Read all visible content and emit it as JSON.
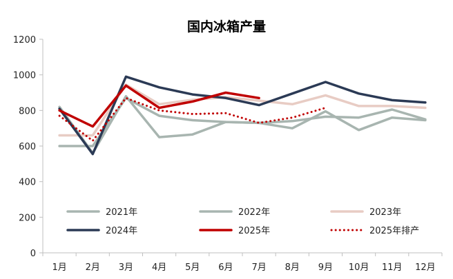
{
  "chart_data": {
    "type": "line",
    "title": "国内冰箱产量",
    "xlabel": "",
    "ylabel": "",
    "categories": [
      "1月",
      "2月",
      "3月",
      "4月",
      "5月",
      "6月",
      "7月",
      "8月",
      "9月",
      "10月",
      "11月",
      "12月"
    ],
    "ylim": [
      0,
      1200
    ],
    "yticks": [
      0,
      200,
      400,
      600,
      800,
      1000,
      1200
    ],
    "grid": false,
    "legend_position": "bottom-inside",
    "series": [
      {
        "name": "2021年",
        "color": "#a8b5b0",
        "dash": "solid",
        "values": [
          820,
          560,
          880,
          650,
          665,
          735,
          730,
          700,
          795,
          690,
          760,
          745
        ]
      },
      {
        "name": "2022年",
        "color": "#a8b5b0",
        "dash": "solid",
        "values": [
          600,
          600,
          870,
          770,
          745,
          735,
          730,
          740,
          765,
          760,
          805,
          750
        ]
      },
      {
        "name": "2023年",
        "color": "#e8ccc4",
        "dash": "solid",
        "values": [
          660,
          660,
          945,
          835,
          860,
          875,
          855,
          835,
          885,
          825,
          825,
          815
        ]
      },
      {
        "name": "2024年",
        "color": "#2b3a55",
        "dash": "solid",
        "values": [
          810,
          555,
          990,
          930,
          890,
          870,
          830,
          895,
          960,
          895,
          858,
          845
        ]
      },
      {
        "name": "2025年",
        "color": "#c00000",
        "dash": "solid",
        "values": [
          800,
          710,
          940,
          815,
          850,
          900,
          870,
          null,
          null,
          null,
          null,
          null
        ]
      },
      {
        "name": "2025年排产",
        "color": "#c00000",
        "dash": "dotted",
        "values": [
          770,
          630,
          870,
          800,
          780,
          785,
          730,
          760,
          815,
          null,
          null,
          null
        ]
      }
    ]
  }
}
